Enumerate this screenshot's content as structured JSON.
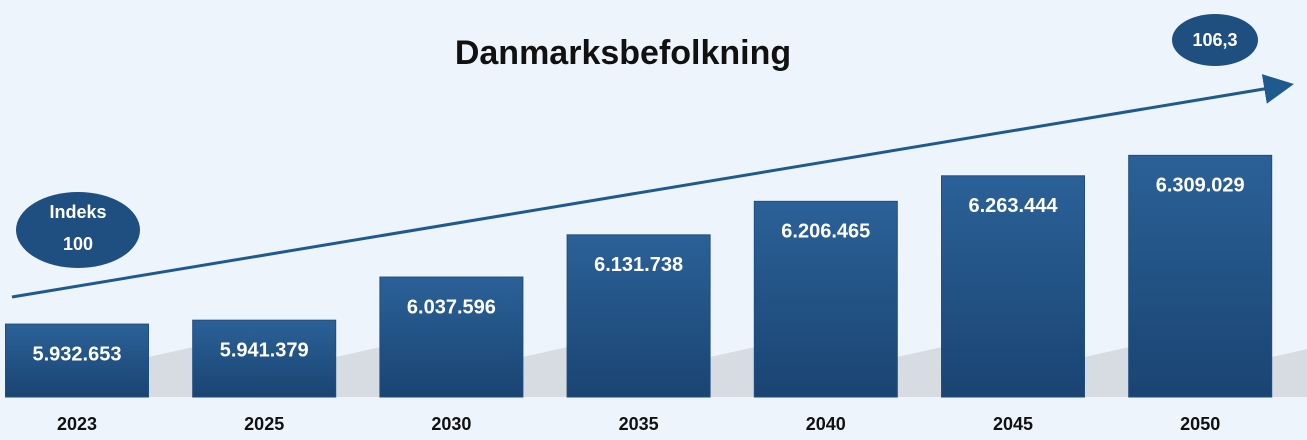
{
  "chart_data": {
    "type": "bar",
    "title": "Danmarksbefolkning",
    "categories": [
      "2023",
      "2025",
      "2030",
      "2035",
      "2040",
      "2045",
      "2050"
    ],
    "values": [
      5932653,
      5941379,
      6037596,
      6131738,
      6206465,
      6263444,
      6309029
    ],
    "value_labels": [
      "5.932.653",
      "5.941.379",
      "6.037.596",
      "6.131.738",
      "6.206.465",
      "6.263.444",
      "6.309.029"
    ],
    "color": "#1f4e80",
    "ylim": [
      5770000,
      6350000
    ],
    "annotations": {
      "start": [
        "Indeks",
        "100"
      ],
      "end": "106,3"
    }
  }
}
